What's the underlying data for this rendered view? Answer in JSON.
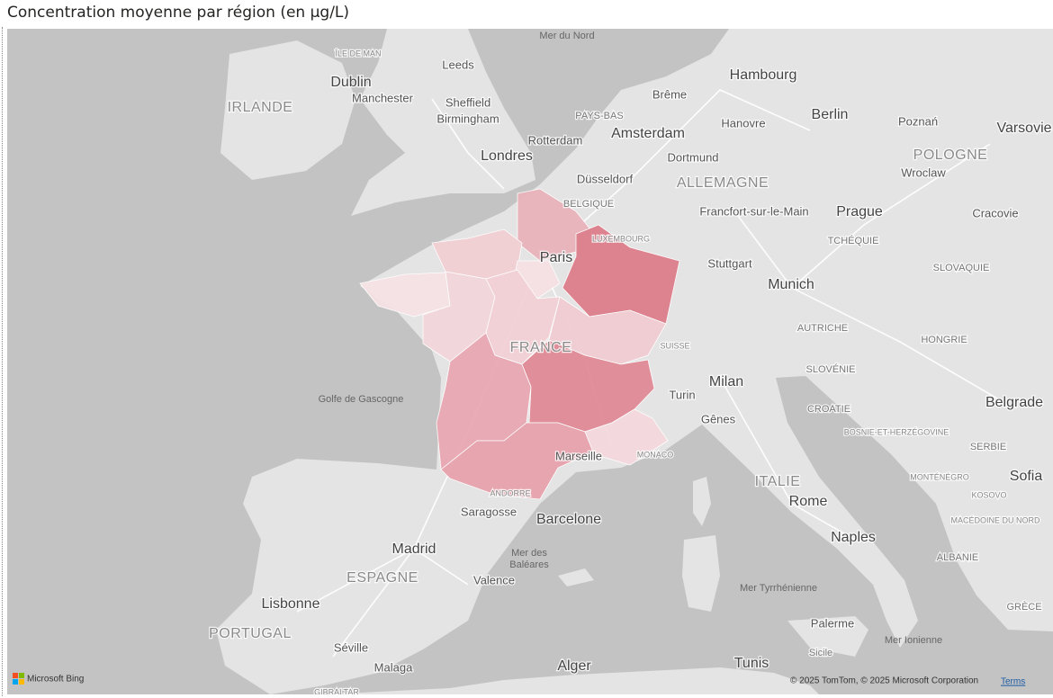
{
  "title": "Concentration moyenne par région (en µg/L)",
  "map": {
    "labels": [
      "Mer du Nord",
      "ÎLE DE MAN",
      "Leeds",
      "Dublin",
      "Manchester",
      "Sheffield",
      "IRLANDE",
      "Birmingham",
      "Hambourg",
      "Brême",
      "Berlin",
      "Hanovre",
      "Poznań",
      "Varsovie",
      "PAYS-BAS",
      "Amsterdam",
      "Rotterdam",
      "Dortmund",
      "POLOGNE",
      "Londres",
      "Wroclaw",
      "Düsseldorf",
      "ALLEMAGNE",
      "BELGIQUE",
      "Francfort-sur-le-Main",
      "Prague",
      "Cracovie",
      "LUXEMBOURG",
      "TCHÉQUIE",
      "Paris",
      "Stuttgart",
      "SLOVAQUIE",
      "Munich",
      "AUTRICHE",
      "HONGRIE",
      "FRANCE",
      "SUISSE",
      "SLOVÉNIE",
      "Milan",
      "Golfe de Gascogne",
      "Turin",
      "Belgrade",
      "CROATIE",
      "Gênes",
      "BOSNIE-ET-HERZÉGOVINE",
      "SERBIE",
      "Marseille",
      "MONACO",
      "ITALIE",
      "MONTÉNÉGRO",
      "Sofia",
      "KOSOVO",
      "ANDORRE",
      "Rome",
      "Saragosse",
      "Barcelone",
      "MACÉDOINE DU NORD",
      "Naples",
      "Madrid",
      "Mer des",
      "Baléares",
      "ALBANIE",
      "ESPAGNE",
      "Valence",
      "Mer Tyrrhénienne",
      "Lisbonne",
      "GRÈCE",
      "PORTUGAL",
      "Palerme",
      "Séville",
      "Mer Ionienne",
      "Sicile",
      "Malaga",
      "Alger",
      "Tunis",
      "GIBRALTAR"
    ]
  },
  "attribution": {
    "provider": "Microsoft Bing",
    "copyright": "© 2025 TomTom, © 2025 Microsoft Corporation",
    "terms": "Terms"
  }
}
